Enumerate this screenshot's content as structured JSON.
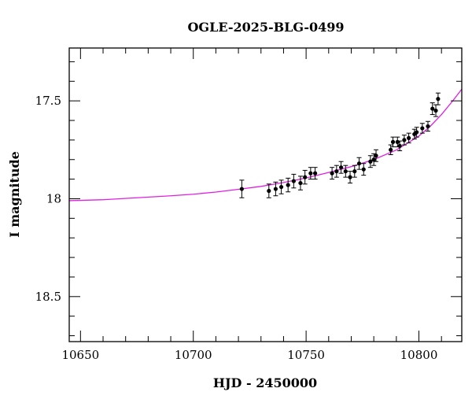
{
  "chart_data": {
    "type": "scatter",
    "title": "OGLE-2025-BLG-0499",
    "xlabel": "HJD - 2450000",
    "ylabel": "I magnitude",
    "xlim": [
      10645,
      10819
    ],
    "ylim": [
      18.73,
      17.23
    ],
    "y_inverted": true,
    "x_ticks": [
      10650,
      10700,
      10750,
      10800
    ],
    "y_ticks": [
      17.5,
      18,
      18.5
    ],
    "grid": false,
    "colors": {
      "points": "#000000",
      "model": "#e020e0",
      "axes": "#000000"
    },
    "series": [
      {
        "kind": "observations",
        "points": [
          {
            "x": 10721.5,
            "y": 17.95,
            "err": 0.045
          },
          {
            "x": 10733.5,
            "y": 17.96,
            "err": 0.035
          },
          {
            "x": 10736.5,
            "y": 17.95,
            "err": 0.035
          },
          {
            "x": 10739.0,
            "y": 17.94,
            "err": 0.035
          },
          {
            "x": 10742.0,
            "y": 17.93,
            "err": 0.035
          },
          {
            "x": 10744.5,
            "y": 17.91,
            "err": 0.035
          },
          {
            "x": 10747.5,
            "y": 17.92,
            "err": 0.035
          },
          {
            "x": 10749.5,
            "y": 17.89,
            "err": 0.035
          },
          {
            "x": 10752.0,
            "y": 17.87,
            "err": 0.03
          },
          {
            "x": 10754.0,
            "y": 17.87,
            "err": 0.03
          },
          {
            "x": 10761.5,
            "y": 17.87,
            "err": 0.03
          },
          {
            "x": 10763.5,
            "y": 17.86,
            "err": 0.03
          },
          {
            "x": 10765.5,
            "y": 17.84,
            "err": 0.03
          },
          {
            "x": 10767.5,
            "y": 17.86,
            "err": 0.03
          },
          {
            "x": 10769.5,
            "y": 17.89,
            "err": 0.03
          },
          {
            "x": 10771.5,
            "y": 17.86,
            "err": 0.03
          },
          {
            "x": 10773.5,
            "y": 17.82,
            "err": 0.03
          },
          {
            "x": 10775.5,
            "y": 17.85,
            "err": 0.03
          },
          {
            "x": 10778.5,
            "y": 17.81,
            "err": 0.03
          },
          {
            "x": 10780.0,
            "y": 17.8,
            "err": 0.03
          },
          {
            "x": 10781.0,
            "y": 17.78,
            "err": 0.03
          },
          {
            "x": 10787.5,
            "y": 17.75,
            "err": 0.025
          },
          {
            "x": 10788.5,
            "y": 17.71,
            "err": 0.025
          },
          {
            "x": 10790.5,
            "y": 17.71,
            "err": 0.025
          },
          {
            "x": 10791.5,
            "y": 17.73,
            "err": 0.025
          },
          {
            "x": 10793.5,
            "y": 17.7,
            "err": 0.025
          },
          {
            "x": 10795.5,
            "y": 17.69,
            "err": 0.025
          },
          {
            "x": 10798.0,
            "y": 17.67,
            "err": 0.025
          },
          {
            "x": 10799.0,
            "y": 17.66,
            "err": 0.025
          },
          {
            "x": 10801.5,
            "y": 17.64,
            "err": 0.025
          },
          {
            "x": 10804.0,
            "y": 17.63,
            "err": 0.025
          },
          {
            "x": 10806.0,
            "y": 17.54,
            "err": 0.03
          },
          {
            "x": 10807.5,
            "y": 17.55,
            "err": 0.03
          },
          {
            "x": 10808.5,
            "y": 17.49,
            "err": 0.03
          }
        ]
      },
      {
        "kind": "model",
        "x": [
          10645,
          10660,
          10675,
          10690,
          10700,
          10710,
          10720,
          10730,
          10740,
          10750,
          10760,
          10770,
          10780,
          10790,
          10800,
          10805,
          10810,
          10815,
          10819
        ],
        "y": [
          18.01,
          18.005,
          17.995,
          17.985,
          17.977,
          17.966,
          17.952,
          17.937,
          17.917,
          17.894,
          17.866,
          17.836,
          17.8,
          17.751,
          17.68,
          17.63,
          17.57,
          17.5,
          17.44
        ]
      }
    ]
  }
}
